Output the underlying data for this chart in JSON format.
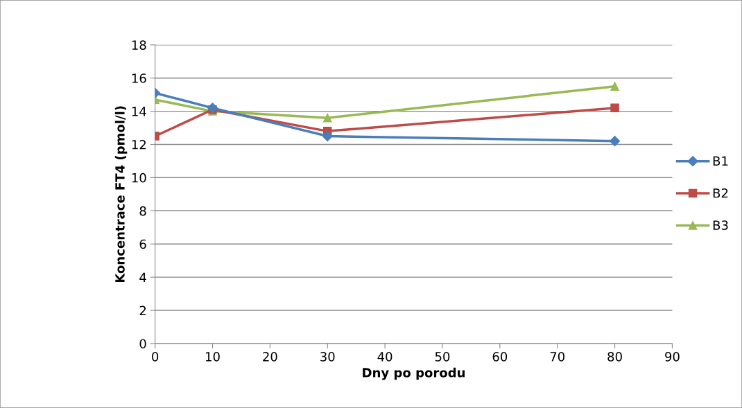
{
  "chart_data": {
    "type": "line",
    "xlabel": "Dny po porodu",
    "ylabel": "Koncentrace FT4 (pmol/l)",
    "x": [
      0,
      10,
      30,
      80
    ],
    "series": [
      {
        "name": "B1",
        "color": "#4a7ebb",
        "marker": "diamond",
        "values": [
          15.1,
          14.2,
          12.5,
          12.2
        ]
      },
      {
        "name": "B2",
        "color": "#be4b48",
        "marker": "square",
        "values": [
          12.5,
          14.1,
          12.8,
          14.2
        ]
      },
      {
        "name": "B3",
        "color": "#98b954",
        "marker": "triangle",
        "values": [
          14.7,
          14.0,
          13.6,
          15.5
        ]
      }
    ],
    "xlim": [
      0,
      90
    ],
    "xticks": [
      0,
      10,
      20,
      30,
      40,
      50,
      60,
      70,
      80,
      90
    ],
    "ylim": [
      0,
      18
    ],
    "yticks": [
      0,
      2,
      4,
      6,
      8,
      10,
      12,
      14,
      16,
      18
    ],
    "grid": "y",
    "legend": "right",
    "line_style": "solid"
  }
}
